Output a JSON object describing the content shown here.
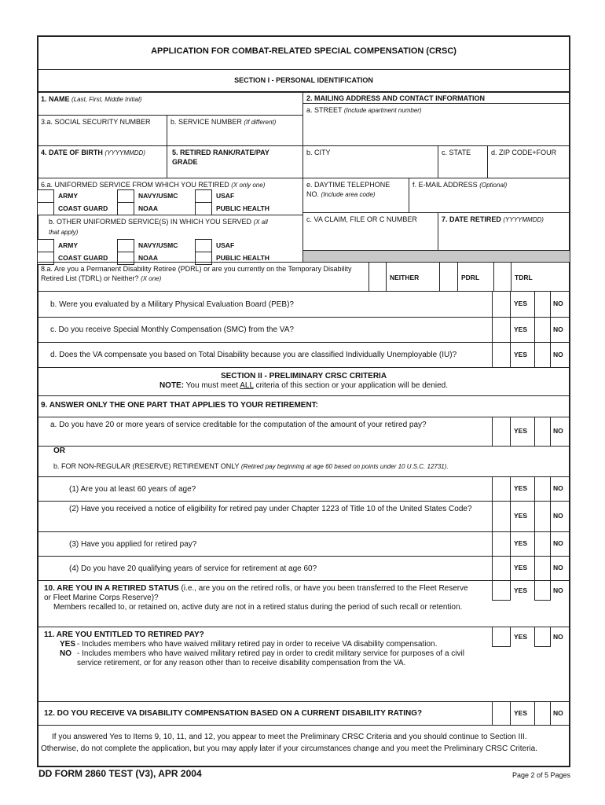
{
  "title": "APPLICATION FOR COMBAT-RELATED SPECIAL COMPENSATION (CRSC)",
  "section1": "SECTION I - PERSONAL IDENTIFICATION",
  "f1": {
    "label": "1. NAME",
    "hint": "(Last, First, Middle Initial)"
  },
  "f2": {
    "label": "2. MAILING ADDRESS AND CONTACT INFORMATION",
    "a": "a. STREET",
    "a_hint": "(Include apartment number)",
    "b": "b. CITY",
    "c": "c. STATE",
    "d": "d. ZIP CODE+FOUR",
    "e": "e. DAYTIME TELEPHONE NO.",
    "e_hint": "(Include area code)",
    "f": "f. E-MAIL ADDRESS",
    "f_hint": "(Optional)",
    "vc": "c. VA CLAIM, FILE OR C NUMBER"
  },
  "f3a": "3.a. SOCIAL SECURITY NUMBER",
  "f3b": {
    "label": "b. SERVICE NUMBER",
    "hint": "(If different)"
  },
  "f4": {
    "label": "4. DATE OF BIRTH",
    "hint": "(YYYYMMDD)"
  },
  "f5": "5. RETIRED RANK/RATE/PAY GRADE",
  "f6a": {
    "label": "6.a. UNIFORMED SERVICE FROM WHICH YOU RETIRED",
    "hint": "(X only one)"
  },
  "f6b": {
    "label": "b. OTHER UNIFORMED SERVICE(S) IN WHICH YOU SERVED",
    "hint": "(X all that apply)"
  },
  "services": [
    "ARMY",
    "NAVY/USMC",
    "USAF",
    "COAST GUARD",
    "NOAA",
    "PUBLIC HEALTH"
  ],
  "f7": {
    "label": "7. DATE RETIRED",
    "hint": "(YYYYMMDD)"
  },
  "q8a": {
    "text": "8.a. Are you a Permanent Disability Retiree (PDRL) or are you currently on the Temporary Disability Retired List (TDRL) or Neither?",
    "hint": "(X one)",
    "options": [
      "NEITHER",
      "PDRL",
      "TDRL"
    ]
  },
  "yes": "YES",
  "no": "NO",
  "q8b": "b. Were you evaluated by a Military Physical Evaluation Board (PEB)?",
  "q8c": "c. Do you receive Special Monthly Compensation (SMC) from the VA?",
  "q8d": "d. Does the VA compensate you based on Total Disability because you are classified Individually Unemployable (IU)?",
  "section2": "SECTION II - PRELIMINARY CRSC CRITERIA",
  "note": {
    "label": "NOTE:",
    "pre": "You must meet",
    "em": "ALL",
    "post": "criteria of this section or your application will be denied."
  },
  "q9": "9. ANSWER ONLY THE ONE PART THAT APPLIES TO YOUR RETIREMENT:",
  "q9a": "a. Do you have 20 or more years of service creditable for the computation of the amount of your retired pay?",
  "or": "OR",
  "q9b": {
    "text": "b. FOR NON-REGULAR (RESERVE) RETIREMENT ONLY",
    "hint": "(Retired pay beginning at age 60 based on points under 10 U.S.C. 12731)."
  },
  "q9b1": "(1) Are you at least 60 years of age?",
  "q9b2": "(2) Have you received a notice of eligibility for retired pay under Chapter 1223 of Title 10 of the United States Code?",
  "q9b3": "(3) Have you applied for retired pay?",
  "q9b4": "(4) Do you have 20 qualifying years of service for retirement at age 60?",
  "q10": {
    "label": "10. ARE YOU IN A RETIRED STATUS",
    "text": "(i.e., are you on the retired rolls, or have you been transferred to the Fleet Reserve or Fleet Marine Corps Reserve)?",
    "note": "Members recalled to, or retained on, active duty are not in a retired status during the period of such recall or retention."
  },
  "q11": {
    "label": "11. ARE YOU ENTITLED TO RETIRED PAY?",
    "yes_label": "YES",
    "yes_text": "- Includes members who have waived military retired pay in order to receive VA disability compensation.",
    "no_label": "NO",
    "no_text": "- Includes members who have waived military retired pay in order to credit military service for purposes of a civil service retirement, or for any reason other than to receive disability compensation from the VA."
  },
  "q12": "12. DO YOU RECEIVE VA DISABILITY COMPENSATION BASED ON A CURRENT DISABILITY RATING?",
  "closing": "If you answered Yes to Items 9, 10, 11, and 12, you appear to meet the Preliminary CRSC Criteria and you should continue to Section III. Otherwise, do not complete the application, but you may apply later if your circumstances change and you meet the Preliminary CRSC Criteria.",
  "footer": {
    "form": "DD FORM 2860 TEST (V3), APR 2004",
    "page": "Page 2 of 5 Pages"
  }
}
